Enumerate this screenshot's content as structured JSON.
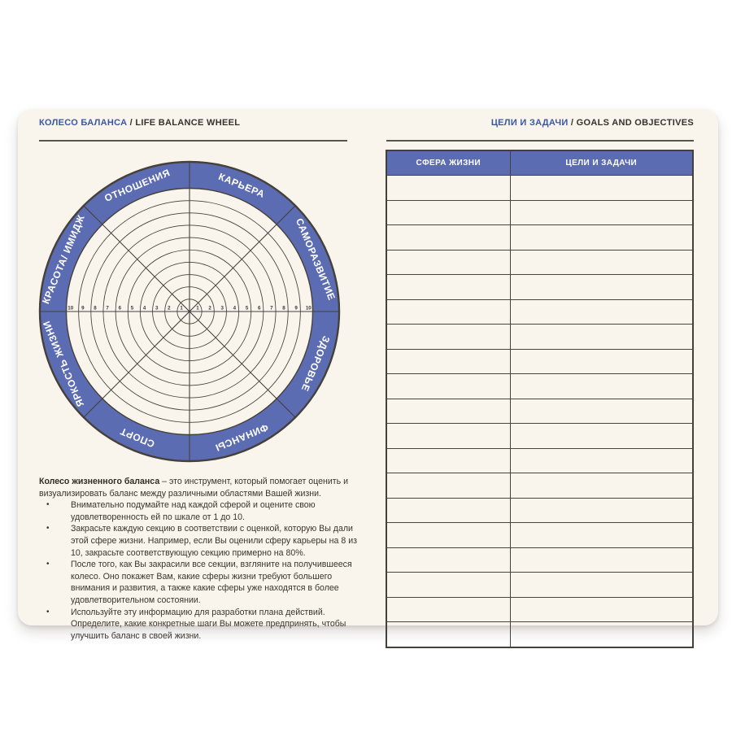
{
  "left_header": {
    "title_ru": "КОЛЕСО БАЛАНСА",
    "separator": " / ",
    "title_en": "LIFE BALANCE WHEEL"
  },
  "right_header": {
    "title_ru": "ЦЕЛИ И ЗАДАЧИ",
    "separator": " / ",
    "title_en": "GOALS AND OBJECTIVES"
  },
  "wheel": {
    "sectors": [
      "КАРЬЕРА",
      "САМОРАЗВИТИЕ",
      "ЗДОРОВЬЕ",
      "ФИНАНСЫ",
      "СПОРТ",
      "ЯРКОСТЬ ЖИЗНИ",
      "КРАСОТА/ ИМИДЖ",
      "ОТНОШЕНИЯ"
    ],
    "scale_min": 1,
    "scale_max": 10
  },
  "instructions": {
    "lead": "Колесо жизненного баланса",
    "lead_rest": " – это инструмент, который помогает оценить и визуализировать баланс между различными областями Вашей жизни.",
    "bullet_char": "•",
    "bullets": [
      "Внимательно подумайте над каждой сферой и оцените свою удовлетворенность ей по шкале от 1 до 10.",
      "Закрасьте каждую секцию в соответствии с оценкой, которую Вы дали этой сфере жизни. Например, если Вы оценили сферу карьеры на 8 из 10, закрасьте соответствующую секцию примерно на 80%.",
      "После того, как Вы закрасили все секции, взгляните на получившееся колесо. Оно покажет Вам, какие сферы жизни требуют большего внимания и развития, а также какие сферы уже находятся в более удовлетворительном состоянии.",
      "Используйте эту информацию для разработки плана действий. Определите, какие конкретные шаги Вы можете предпринять, чтобы улучшить баланс в своей жизни."
    ]
  },
  "table": {
    "headers": [
      "СФЕРА ЖИЗНИ",
      "ЦЕЛИ И ЗАДАЧИ"
    ],
    "row_count": 19,
    "rows": []
  },
  "colors": {
    "band_blue": "#5c6cb2",
    "accent_blue": "#3a57a5",
    "line_dark": "#45403a",
    "card_bg": "#f9f4ec",
    "text_dark": "#3a342d",
    "label_white": "#ffffff"
  }
}
